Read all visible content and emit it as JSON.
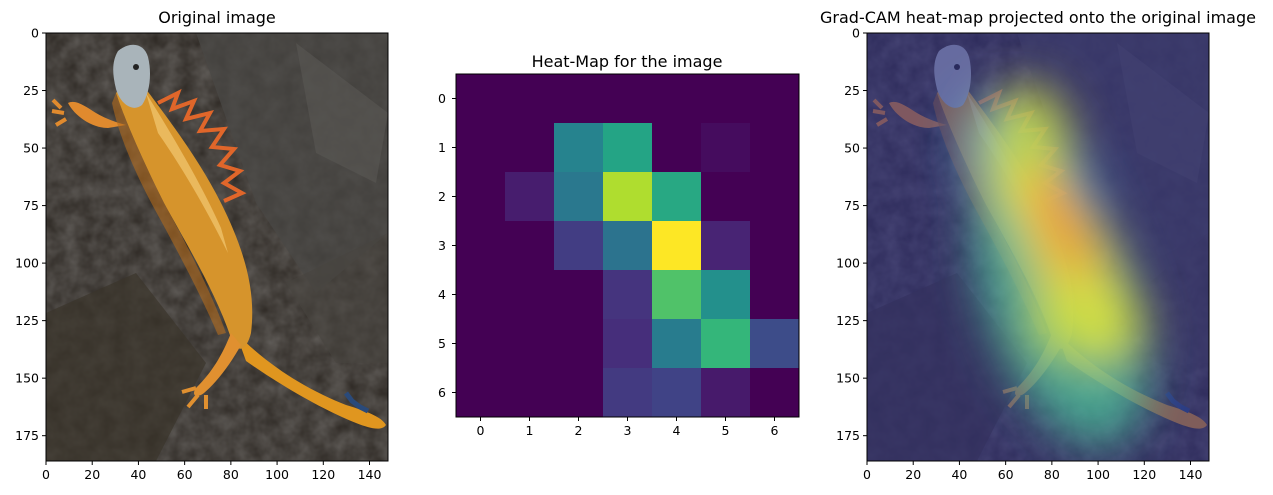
{
  "chart_data": [
    {
      "type": "image",
      "title": "Original image",
      "xlim": [
        0,
        148
      ],
      "ylim": [
        186,
        0
      ],
      "xticks": [
        "0",
        "20",
        "40",
        "60",
        "80",
        "100",
        "120",
        "140"
      ],
      "yticks": [
        "0",
        "25",
        "50",
        "75",
        "100",
        "125",
        "150",
        "175"
      ],
      "content": "photo of an orange iguana on dark rock, shown diagonally"
    },
    {
      "type": "heatmap",
      "title": "Heat-Map for the image",
      "colormap": "viridis",
      "xticks": [
        "0",
        "1",
        "2",
        "3",
        "4",
        "5",
        "6"
      ],
      "yticks": [
        "0",
        "1",
        "2",
        "3",
        "4",
        "5",
        "6"
      ],
      "values": [
        [
          0.0,
          0.0,
          0.0,
          0.0,
          0.0,
          0.0,
          0.0
        ],
        [
          0.0,
          0.0,
          0.45,
          0.58,
          0.0,
          0.03,
          0.0
        ],
        [
          0.0,
          0.08,
          0.4,
          0.88,
          0.6,
          0.0,
          0.0
        ],
        [
          0.0,
          0.0,
          0.18,
          0.38,
          1.0,
          0.1,
          0.0
        ],
        [
          0.0,
          0.0,
          0.0,
          0.15,
          0.72,
          0.5,
          0.0
        ],
        [
          0.0,
          0.0,
          0.0,
          0.13,
          0.42,
          0.66,
          0.23
        ],
        [
          0.0,
          0.0,
          0.0,
          0.17,
          0.2,
          0.07,
          0.0
        ]
      ]
    },
    {
      "type": "image",
      "title": "Grad-CAM heat-map projected onto the original image",
      "xlim": [
        0,
        148
      ],
      "ylim": [
        186,
        0
      ],
      "xticks": [
        "0",
        "20",
        "40",
        "60",
        "80",
        "100",
        "120",
        "140"
      ],
      "yticks": [
        "0",
        "25",
        "50",
        "75",
        "100",
        "125",
        "150",
        "175"
      ],
      "content": "iguana photo with jet-colormap Grad-CAM heat overlay"
    }
  ],
  "colors": {
    "rock_dark": "#2a2622",
    "iguana_orange": "#d9902a",
    "iguana_head": "#a8b4bc"
  }
}
